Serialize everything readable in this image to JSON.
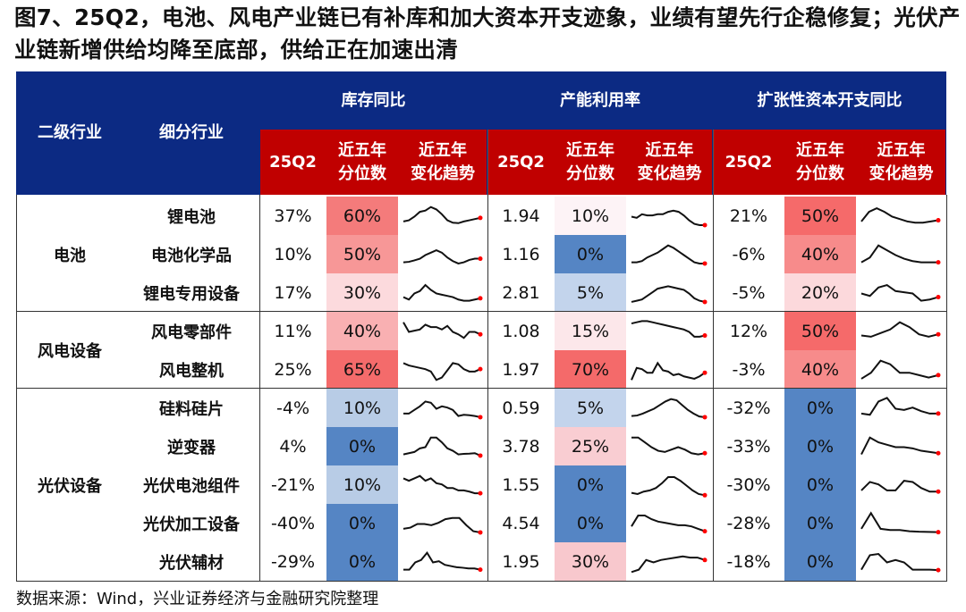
{
  "title": "图7、25Q2，电池、风电产业链已有补库和加大资本开支迹象，业绩有望先行企稳修复；光伏产业链新增供给均降至底部，供给正在加速出清",
  "header": {
    "col1": "二级行业",
    "col2": "细分行业",
    "groups": [
      "库存同比",
      "产能利用率",
      "扩张性资本开支同比"
    ],
    "sub": [
      "25Q2",
      "近五年\n分位数",
      "近五年\n变化趋势"
    ]
  },
  "colors": {
    "header_bg": "#0c2a83",
    "subheader_bg": "#c00000",
    "trend_end_marker": "#ff0000"
  },
  "groups": [
    {
      "name": "电池",
      "rows": [
        0,
        1,
        2
      ]
    },
    {
      "name": "风电设备",
      "rows": [
        3,
        4
      ]
    },
    {
      "name": "光伏设备",
      "rows": [
        5,
        6,
        7,
        8,
        9
      ]
    }
  ],
  "rows": [
    {
      "name": "锂电池",
      "inv": [
        "37%",
        "60%",
        "#f47b7b"
      ],
      "cap": [
        "1.94",
        "10%",
        "#fdf3f6"
      ],
      "capex": [
        "21%",
        "50%",
        "#f56a6a"
      ],
      "t": [
        [
          3,
          3.5,
          5,
          7,
          7.5,
          9,
          8,
          6,
          3.5,
          2.5,
          2.3,
          3,
          3.5,
          4,
          4.5
        ],
        [
          5,
          4.5,
          6,
          5.5,
          5.5,
          6,
          6,
          7,
          7.5,
          7,
          5.5,
          3.5,
          2,
          1.5,
          1.5
        ],
        [
          3,
          7,
          8.5,
          7,
          5,
          4,
          3,
          2.5,
          2.5,
          3,
          3.5
        ]
      ]
    },
    {
      "name": "电池化学品",
      "inv": [
        "10%",
        "50%",
        "#f79797"
      ],
      "cap": [
        "1.16",
        "0%",
        "#5585c4"
      ],
      "capex": [
        "-6%",
        "40%",
        "#f78b8b"
      ],
      "t": [
        [
          2,
          2.2,
          2.8,
          3.5,
          5,
          6,
          7,
          6,
          4,
          2.5,
          1.5,
          2,
          3,
          3.5,
          3.5
        ],
        [
          2,
          2,
          2.5,
          4,
          5,
          6,
          7.5,
          9,
          8,
          6.5,
          5,
          3.5,
          2,
          1.5,
          1.5
        ],
        [
          2,
          4,
          9,
          7,
          5,
          3.5,
          2.5,
          2,
          2,
          2
        ]
      ]
    },
    {
      "name": "锂电专用设备",
      "inv": [
        "17%",
        "30%",
        "#fcdadd"
      ],
      "cap": [
        "2.81",
        "5%",
        "#c3d4ec"
      ],
      "capex": [
        "-5%",
        "20%",
        "#fcd9dc"
      ],
      "t": [
        [
          3.5,
          2.5,
          5,
          6,
          8.5,
          6.5,
          5,
          4.5,
          4,
          3.5,
          2.5,
          2,
          2,
          2.5,
          3
        ],
        [
          1.5,
          2,
          2.5,
          4,
          5.5,
          7,
          7.5,
          8,
          7.5,
          7,
          6.5,
          5,
          3,
          2,
          1.5
        ],
        [
          5,
          4,
          7.5,
          8.5,
          6,
          5.5,
          5,
          2,
          2.5,
          3.5
        ]
      ]
    },
    {
      "name": "风电零部件",
      "inv": [
        "11%",
        "40%",
        "#f9b0b2"
      ],
      "cap": [
        "1.08",
        "15%",
        "#fce7ea"
      ],
      "capex": [
        "12%",
        "50%",
        "#f56a6a"
      ],
      "t": [
        [
          9,
          5,
          5.5,
          6,
          8,
          7,
          7,
          6,
          7.5,
          5,
          4,
          2.5,
          5,
          5,
          4
        ],
        [
          8.5,
          9,
          9.5,
          9.5,
          9,
          8.5,
          8,
          7.5,
          7,
          6.5,
          6,
          5,
          3,
          3,
          3.5
        ],
        [
          3.5,
          3,
          4.5,
          6,
          9,
          7,
          4,
          3,
          4
        ]
      ]
    },
    {
      "name": "风电整机",
      "inv": [
        "25%",
        "65%",
        "#f46b6b"
      ],
      "cap": [
        "1.97",
        "70%",
        "#f46a6a"
      ],
      "capex": [
        "-3%",
        "40%",
        "#f78b8b"
      ],
      "t": [
        [
          8,
          7,
          6.5,
          6,
          5.5,
          4.5,
          1,
          2,
          5,
          8,
          7.5,
          5.5,
          4.5,
          4.5,
          5.5
        ],
        [
          1,
          6,
          5.5,
          4,
          4,
          8,
          5,
          4.5,
          3,
          3.5,
          2.5,
          2,
          1.5,
          2.5,
          4
        ],
        [
          1.5,
          4,
          9,
          7.5,
          4,
          4,
          3,
          2,
          3
        ]
      ]
    },
    {
      "name": "硅料硅片",
      "inv": [
        "-4%",
        "10%",
        "#b8cce6"
      ],
      "cap": [
        "0.59",
        "5%",
        "#c3d4ec"
      ],
      "capex": [
        "-32%",
        "0%",
        "#5585c4"
      ],
      "t": [
        [
          3,
          3,
          4.5,
          6,
          8,
          7.5,
          5,
          6,
          5.5,
          4.5,
          2,
          2.5,
          2.3,
          2,
          1.5
        ],
        [
          2,
          2.2,
          3,
          4,
          5,
          6.5,
          8,
          9,
          8.5,
          6.5,
          4.5,
          3,
          1.8,
          1.5
        ],
        [
          3,
          2.5,
          8,
          9.5,
          5,
          4.5,
          5.5,
          4,
          3,
          3
        ]
      ]
    },
    {
      "name": "逆变器",
      "inv": [
        "4%",
        "0%",
        "#5585c4"
      ],
      "cap": [
        "3.78",
        "25%",
        "#f9cdd2"
      ],
      "capex": [
        "-33%",
        "0%",
        "#5585c4"
      ],
      "t": [
        [
          2,
          2.5,
          3,
          4.5,
          5,
          9,
          9,
          7,
          4.5,
          3.5,
          2,
          2.2,
          2.3,
          2.5,
          1.5
        ],
        [
          9,
          9,
          7,
          5,
          3.5,
          3,
          4,
          5,
          4,
          2.5,
          2,
          2.5
        ],
        [
          2,
          9,
          7,
          6,
          5,
          5,
          4.5,
          3.5,
          3,
          2.5
        ]
      ]
    },
    {
      "name": "光伏电池组件",
      "inv": [
        "-21%",
        "10%",
        "#b8cce6"
      ],
      "cap": [
        "1.55",
        "0%",
        "#5585c4"
      ],
      "capex": [
        "-30%",
        "0%",
        "#5585c4"
      ],
      "t": [
        [
          8,
          7,
          8,
          9,
          7,
          8,
          6,
          5.5,
          4,
          4,
          3,
          3,
          2.5,
          1.8,
          1.8
        ],
        [
          2,
          1.5,
          2.5,
          3,
          4,
          6,
          8.5,
          8.5,
          7,
          5,
          3,
          1.5,
          1
        ],
        [
          3,
          6.5,
          5.5,
          3,
          3,
          7,
          6.5,
          4,
          2.5,
          2.5
        ]
      ]
    },
    {
      "name": "光伏加工设备",
      "inv": [
        "-40%",
        "0%",
        "#5585c4"
      ],
      "cap": [
        "4.54",
        "0%",
        "#5585c4"
      ],
      "capex": [
        "-28%",
        "0%",
        "#5585c4"
      ],
      "t": [
        [
          3,
          3.5,
          5,
          5,
          4.5,
          5.5,
          7,
          7.5,
          7.5,
          4.5,
          2,
          1.5
        ],
        [
          4,
          8.5,
          8.5,
          7,
          6,
          5.5,
          5,
          4.5,
          4.5,
          4,
          3,
          2
        ],
        [
          3,
          9.5,
          3,
          2.5,
          2.5,
          2,
          1.8,
          1.7,
          1.6
        ]
      ]
    },
    {
      "name": "光伏辅材",
      "inv": [
        "-29%",
        "0%",
        "#5585c4"
      ],
      "cap": [
        "1.95",
        "30%",
        "#f8c8cd"
      ],
      "capex": [
        "-18%",
        "0%",
        "#5585c4"
      ],
      "t": [
        [
          2,
          2,
          5,
          6,
          9,
          5,
          5.5,
          4,
          3.5,
          3,
          2.8,
          2.5,
          2.5,
          2
        ],
        [
          1,
          2,
          6,
          5,
          6,
          6.5,
          7,
          7.5,
          7,
          7,
          6
        ],
        [
          2,
          8,
          8.5,
          5,
          6,
          5,
          2,
          2,
          2,
          1.8
        ]
      ]
    }
  ],
  "source": "数据来源：Wind，兴业证券经济与金融研究院整理"
}
